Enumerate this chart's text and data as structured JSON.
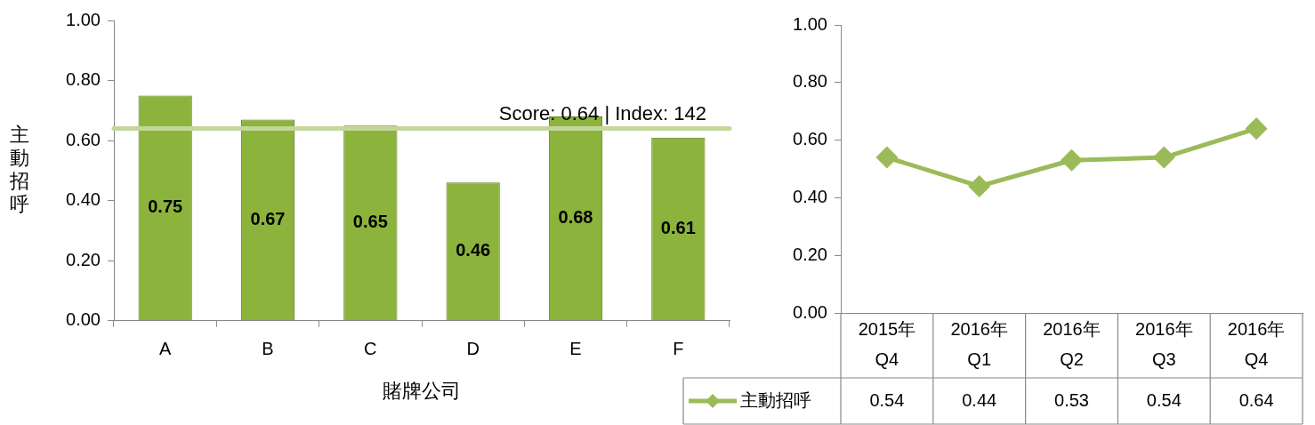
{
  "chart_data": [
    {
      "type": "bar",
      "categories": [
        "A",
        "B",
        "C",
        "D",
        "E",
        "F"
      ],
      "values": [
        0.75,
        0.67,
        0.65,
        0.46,
        0.68,
        0.61
      ],
      "color": "#8cb43c",
      "ylabel": "主動招呼",
      "xlabel": "賭牌公司",
      "ylim": [
        0,
        1
      ],
      "yticks": [
        {
          "value": 0,
          "label": "0.00"
        },
        {
          "value": 0.2,
          "label": "0.20"
        },
        {
          "value": 0.4,
          "label": "0.40"
        },
        {
          "value": 0.6,
          "label": "0.60"
        },
        {
          "value": 0.8,
          "label": "0.80"
        },
        {
          "value": 1,
          "label": "1.00"
        }
      ],
      "grid": false,
      "data_labels": true,
      "ref_lines": [
        {
          "axis": "y",
          "value": 0.64,
          "label": "Score: 0.64 | Index: 142",
          "color": "#c4d79b"
        }
      ]
    },
    {
      "type": "line",
      "categories": [
        "2015年 Q4",
        "2016年 Q1",
        "2016年 Q2",
        "2016年 Q3",
        "2016年 Q4"
      ],
      "series": [
        {
          "name": "主動招呼",
          "color": "#9bbb59",
          "values": [
            0.54,
            0.44,
            0.53,
            0.54,
            0.64
          ]
        }
      ],
      "ylim": [
        0,
        1
      ],
      "yticks": [
        {
          "value": 0,
          "label": "0.00"
        },
        {
          "value": 0.2,
          "label": "0.20"
        },
        {
          "value": 0.4,
          "label": "0.40"
        },
        {
          "value": 0.6,
          "label": "0.60"
        },
        {
          "value": 0.8,
          "label": "0.80"
        },
        {
          "value": 1,
          "label": "1.00"
        }
      ],
      "grid": false,
      "legend": "bottom",
      "marker": "diamond",
      "line_style": "solid",
      "data_labels": true
    }
  ]
}
